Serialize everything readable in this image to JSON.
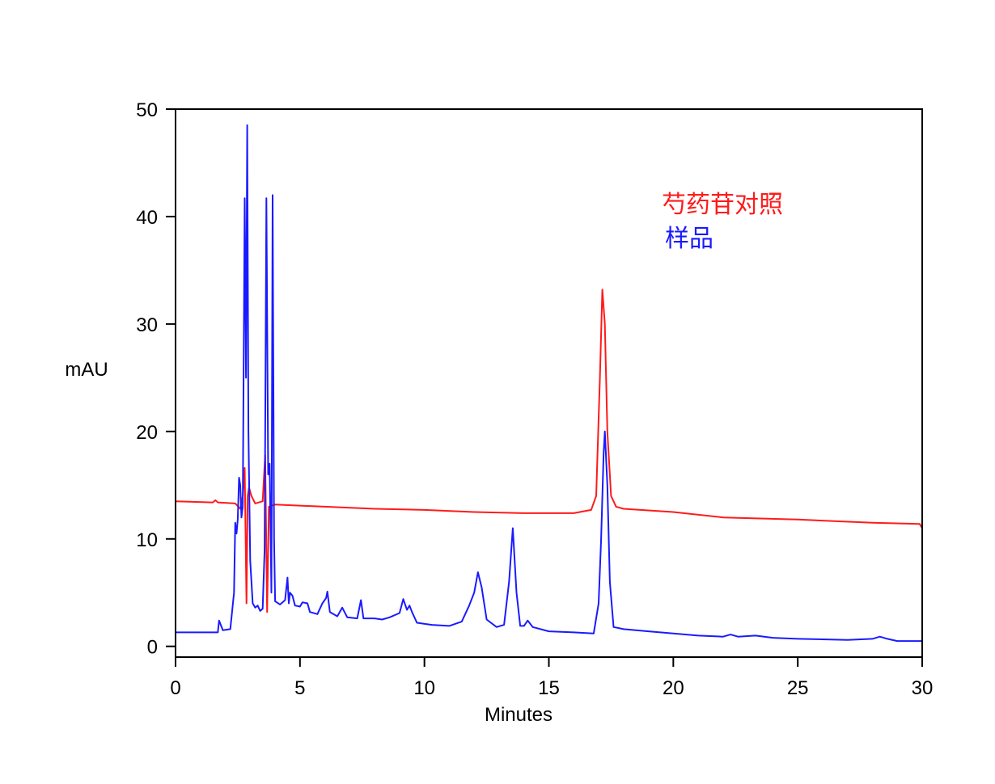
{
  "chart_data": {
    "type": "line",
    "title": "",
    "xlabel": "Minutes",
    "ylabel": "mAU",
    "xlim": [
      0,
      30
    ],
    "ylim": [
      -1,
      50
    ],
    "xticks": [
      0,
      5,
      10,
      15,
      20,
      25,
      30
    ],
    "yticks": [
      0,
      10,
      20,
      30,
      40,
      50
    ],
    "grid": false,
    "legend_position": "top-right",
    "series": [
      {
        "name": "芍药苷对照",
        "color": "#ff1a1a",
        "points": [
          [
            0,
            13.5
          ],
          [
            1.5,
            13.4
          ],
          [
            1.6,
            13.6
          ],
          [
            1.7,
            13.4
          ],
          [
            2.4,
            13.3
          ],
          [
            2.6,
            12.8
          ],
          [
            2.7,
            14
          ],
          [
            2.78,
            16.6
          ],
          [
            2.85,
            4
          ],
          [
            2.9,
            14
          ],
          [
            2.95,
            14.8
          ],
          [
            3.05,
            14
          ],
          [
            3.2,
            13.3
          ],
          [
            3.5,
            13.5
          ],
          [
            3.6,
            17.8
          ],
          [
            3.68,
            3.2
          ],
          [
            3.75,
            13
          ],
          [
            4,
            13.2
          ],
          [
            5,
            13.1
          ],
          [
            6,
            13.0
          ],
          [
            8,
            12.8
          ],
          [
            10,
            12.7
          ],
          [
            12,
            12.5
          ],
          [
            14,
            12.4
          ],
          [
            16,
            12.4
          ],
          [
            16.7,
            12.7
          ],
          [
            16.9,
            14
          ],
          [
            17.05,
            25
          ],
          [
            17.15,
            33.2
          ],
          [
            17.25,
            30
          ],
          [
            17.35,
            20
          ],
          [
            17.5,
            14
          ],
          [
            17.7,
            13
          ],
          [
            18,
            12.8
          ],
          [
            20,
            12.5
          ],
          [
            22,
            12.0
          ],
          [
            25,
            11.8
          ],
          [
            28,
            11.5
          ],
          [
            29.9,
            11.4
          ],
          [
            30,
            11.0
          ]
        ]
      },
      {
        "name": "样品",
        "color": "#1a1aff",
        "points": [
          [
            0,
            1.3
          ],
          [
            1.7,
            1.3
          ],
          [
            1.75,
            2.4
          ],
          [
            1.9,
            1.5
          ],
          [
            2.2,
            1.6
          ],
          [
            2.35,
            5
          ],
          [
            2.4,
            11.5
          ],
          [
            2.45,
            10.5
          ],
          [
            2.5,
            11.8
          ],
          [
            2.55,
            15.7
          ],
          [
            2.6,
            15
          ],
          [
            2.65,
            12
          ],
          [
            2.7,
            13
          ],
          [
            2.78,
            41.7
          ],
          [
            2.83,
            25
          ],
          [
            2.88,
            48.5
          ],
          [
            2.93,
            20
          ],
          [
            3.0,
            8
          ],
          [
            3.1,
            4
          ],
          [
            3.2,
            3.6
          ],
          [
            3.3,
            3.8
          ],
          [
            3.4,
            3.3
          ],
          [
            3.5,
            3.5
          ],
          [
            3.58,
            9
          ],
          [
            3.65,
            41.7
          ],
          [
            3.72,
            16
          ],
          [
            3.78,
            17
          ],
          [
            3.85,
            5
          ],
          [
            3.9,
            42
          ],
          [
            3.96,
            10
          ],
          [
            4.0,
            4.2
          ],
          [
            4.2,
            3.9
          ],
          [
            4.4,
            4.3
          ],
          [
            4.5,
            6.4
          ],
          [
            4.55,
            4
          ],
          [
            4.6,
            5
          ],
          [
            4.7,
            4.7
          ],
          [
            4.8,
            3.8
          ],
          [
            5.0,
            3.7
          ],
          [
            5.1,
            4.1
          ],
          [
            5.3,
            4.0
          ],
          [
            5.4,
            3.2
          ],
          [
            5.7,
            3.0
          ],
          [
            5.9,
            4
          ],
          [
            6.05,
            4.5
          ],
          [
            6.1,
            5.1
          ],
          [
            6.2,
            3.2
          ],
          [
            6.5,
            2.8
          ],
          [
            6.7,
            3.6
          ],
          [
            6.9,
            2.7
          ],
          [
            7.3,
            2.6
          ],
          [
            7.45,
            4.3
          ],
          [
            7.55,
            2.6
          ],
          [
            8.0,
            2.6
          ],
          [
            8.3,
            2.5
          ],
          [
            8.6,
            2.7
          ],
          [
            9.0,
            3.1
          ],
          [
            9.15,
            4.4
          ],
          [
            9.3,
            3.4
          ],
          [
            9.4,
            3.8
          ],
          [
            9.5,
            3.2
          ],
          [
            9.7,
            2.2
          ],
          [
            10.3,
            2.0
          ],
          [
            11.0,
            1.9
          ],
          [
            11.5,
            2.3
          ],
          [
            11.8,
            3.8
          ],
          [
            12.0,
            5
          ],
          [
            12.15,
            6.9
          ],
          [
            12.3,
            5.5
          ],
          [
            12.5,
            2.5
          ],
          [
            12.9,
            1.8
          ],
          [
            13.2,
            2.0
          ],
          [
            13.4,
            6
          ],
          [
            13.55,
            11
          ],
          [
            13.7,
            5
          ],
          [
            13.85,
            1.9
          ],
          [
            14.0,
            1.9
          ],
          [
            14.15,
            2.4
          ],
          [
            14.35,
            1.8
          ],
          [
            15,
            1.4
          ],
          [
            16,
            1.3
          ],
          [
            16.8,
            1.2
          ],
          [
            17.0,
            4
          ],
          [
            17.1,
            10
          ],
          [
            17.2,
            18
          ],
          [
            17.25,
            20
          ],
          [
            17.35,
            15
          ],
          [
            17.45,
            6
          ],
          [
            17.6,
            1.8
          ],
          [
            18,
            1.6
          ],
          [
            19,
            1.4
          ],
          [
            20,
            1.2
          ],
          [
            21,
            1.0
          ],
          [
            22,
            0.9
          ],
          [
            22.3,
            1.1
          ],
          [
            22.6,
            0.9
          ],
          [
            23.3,
            1.0
          ],
          [
            24,
            0.8
          ],
          [
            25,
            0.7
          ],
          [
            27,
            0.6
          ],
          [
            28,
            0.7
          ],
          [
            28.3,
            0.9
          ],
          [
            28.6,
            0.7
          ],
          [
            29,
            0.5
          ],
          [
            30,
            0.5
          ]
        ]
      }
    ]
  }
}
